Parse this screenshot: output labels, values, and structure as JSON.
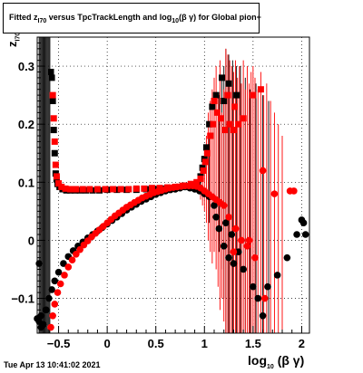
{
  "title": {
    "prefix": "Fitted  z",
    "z_sub": "I70",
    "middle": " versus TpcTrackLength and log",
    "log_sub": "10",
    "suffix": "(β γ) for Global pion+"
  },
  "y_axis_label": {
    "main": "z",
    "sub": "I70"
  },
  "x_axis_label": {
    "main": "log",
    "sub": "10",
    "suffix": "(β γ)"
  },
  "timestamp": "Tue Apr 13 10:41:02 2021",
  "colors": {
    "series_black": "#000000",
    "series_red": "#ff0000",
    "grid": "#000000",
    "background": "#ffffff"
  },
  "chart_data": {
    "type": "scatter",
    "xlim": [
      -0.72,
      2.08
    ],
    "ylim": [
      -0.16,
      0.35
    ],
    "x_ticks": [
      -0.5,
      0,
      0.5,
      1,
      1.5,
      2
    ],
    "x_tick_labels": [
      "−0.5",
      "0",
      "0.5",
      "1",
      "1.5",
      "2"
    ],
    "y_ticks": [
      -0.1,
      0,
      0.1,
      0.2,
      0.3
    ],
    "y_tick_labels": [
      "−0.1",
      "0",
      "0.1",
      "0.2",
      "0.3"
    ],
    "grid": true,
    "series": [
      {
        "color": "#000000",
        "marker": "square",
        "points": [
          [
            -0.58,
            0.29
          ],
          [
            -0.57,
            0.28
          ],
          [
            -0.56,
            0.24
          ],
          [
            -0.55,
            0.19
          ],
          [
            -0.54,
            0.15
          ],
          [
            -0.53,
            0.115
          ],
          [
            -0.52,
            0.105
          ],
          [
            -0.51,
            0.097
          ],
          [
            -0.49,
            0.092
          ],
          [
            -0.46,
            0.088
          ],
          [
            -0.42,
            0.086
          ],
          [
            -0.38,
            0.086
          ],
          [
            -0.33,
            0.086
          ],
          [
            -0.28,
            0.086
          ],
          [
            -0.22,
            0.086
          ],
          [
            -0.15,
            0.086
          ],
          [
            -0.08,
            0.086
          ],
          [
            0.0,
            0.087
          ],
          [
            0.1,
            0.087
          ],
          [
            0.2,
            0.087
          ],
          [
            0.3,
            0.087
          ],
          [
            0.4,
            0.088
          ],
          [
            0.5,
            0.088
          ],
          [
            0.6,
            0.089
          ],
          [
            0.7,
            0.09
          ],
          [
            0.8,
            0.092
          ],
          [
            0.88,
            0.094
          ],
          [
            0.93,
            0.098
          ],
          [
            0.96,
            0.11
          ],
          [
            0.98,
            0.125
          ],
          [
            1.0,
            0.14
          ],
          [
            1.02,
            0.16
          ],
          [
            1.05,
            0.2
          ],
          [
            1.08,
            0.23
          ],
          [
            1.12,
            0.25
          ],
          [
            1.18,
            0.28
          ],
          [
            1.25,
            0.27
          ],
          [
            1.33,
            0.25
          ],
          [
            1.2,
            0.24
          ]
        ]
      },
      {
        "color": "#000000",
        "marker": "circle",
        "points": [
          [
            -0.72,
            -0.135
          ],
          [
            -0.7,
            -0.14
          ],
          [
            -0.68,
            -0.15
          ],
          [
            -0.66,
            -0.145
          ],
          [
            -0.63,
            -0.12
          ],
          [
            -0.6,
            -0.1
          ],
          [
            -0.57,
            -0.085
          ],
          [
            -0.54,
            -0.07
          ],
          [
            -0.5,
            -0.055
          ],
          [
            -0.45,
            -0.04
          ],
          [
            -0.4,
            -0.028
          ],
          [
            -0.35,
            -0.018
          ],
          [
            -0.3,
            -0.01
          ],
          [
            -0.25,
            -0.003
          ],
          [
            -0.2,
            0.004
          ],
          [
            -0.15,
            0.01
          ],
          [
            -0.1,
            0.016
          ],
          [
            -0.05,
            0.022
          ],
          [
            0.0,
            0.028
          ],
          [
            0.05,
            0.034
          ],
          [
            0.1,
            0.04
          ],
          [
            0.15,
            0.046
          ],
          [
            0.2,
            0.052
          ],
          [
            0.25,
            0.057
          ],
          [
            0.3,
            0.062
          ],
          [
            0.35,
            0.067
          ],
          [
            0.4,
            0.071
          ],
          [
            0.45,
            0.075
          ],
          [
            0.5,
            0.079
          ],
          [
            0.55,
            0.082
          ],
          [
            0.6,
            0.085
          ],
          [
            0.65,
            0.087
          ],
          [
            0.7,
            0.088
          ],
          [
            0.75,
            0.09
          ],
          [
            0.8,
            0.092
          ],
          [
            0.85,
            0.09
          ],
          [
            0.9,
            0.088
          ],
          [
            0.95,
            0.085
          ],
          [
            1.0,
            0.08
          ],
          [
            1.05,
            0.075
          ],
          [
            1.1,
            0.06
          ],
          [
            1.12,
            0.04
          ],
          [
            1.15,
            0.02
          ],
          [
            1.2,
            -0.01
          ],
          [
            1.25,
            -0.03
          ],
          [
            1.3,
            -0.04
          ],
          [
            1.22,
            0.03
          ],
          [
            1.28,
            0.01
          ],
          [
            1.35,
            -0.02
          ],
          [
            1.4,
            -0.05
          ],
          [
            1.5,
            -0.08
          ],
          [
            1.55,
            -0.1
          ],
          [
            1.6,
            -0.13
          ],
          [
            1.65,
            -0.08
          ],
          [
            1.75,
            -0.06
          ],
          [
            1.85,
            -0.03
          ],
          [
            1.95,
            0.01
          ],
          [
            2.0,
            0.035
          ],
          [
            2.02,
            0.03
          ],
          [
            2.04,
            0.01
          ],
          [
            -0.7,
            -0.04
          ],
          [
            -0.68,
            -0.13
          ]
        ]
      },
      {
        "color": "#ff0000",
        "marker": "square",
        "points": [
          [
            -0.56,
            0.25
          ],
          [
            -0.55,
            0.21
          ],
          [
            -0.54,
            0.17
          ],
          [
            -0.53,
            0.13
          ],
          [
            -0.52,
            0.11
          ],
          [
            -0.5,
            0.098
          ],
          [
            -0.47,
            0.092
          ],
          [
            -0.43,
            0.089
          ],
          [
            -0.38,
            0.088
          ],
          [
            -0.32,
            0.088
          ],
          [
            -0.25,
            0.088
          ],
          [
            -0.18,
            0.088
          ],
          [
            -0.1,
            0.088
          ],
          [
            -0.02,
            0.088
          ],
          [
            0.06,
            0.088
          ],
          [
            0.14,
            0.088
          ],
          [
            0.22,
            0.088
          ],
          [
            0.3,
            0.089
          ],
          [
            0.38,
            0.089
          ],
          [
            0.46,
            0.09
          ],
          [
            0.54,
            0.09
          ],
          [
            0.62,
            0.091
          ],
          [
            0.7,
            0.092
          ],
          [
            0.78,
            0.094
          ],
          [
            0.86,
            0.097
          ],
          [
            0.92,
            0.1
          ],
          [
            0.96,
            0.106
          ],
          [
            0.99,
            0.12
          ],
          [
            1.01,
            0.135
          ],
          [
            1.03,
            0.15
          ],
          [
            1.06,
            0.18
          ],
          [
            1.09,
            0.2
          ],
          [
            1.13,
            0.22
          ],
          [
            1.17,
            0.21
          ],
          [
            1.21,
            0.19
          ],
          [
            1.26,
            0.2
          ],
          [
            1.3,
            0.19
          ],
          [
            1.35,
            0.2
          ],
          [
            1.4,
            0.21
          ],
          [
            1.24,
            0.25
          ],
          [
            1.31,
            0.23
          ],
          [
            1.1,
            0.24
          ],
          [
            1.5,
            0.25
          ],
          [
            1.58,
            0.26
          ]
        ]
      },
      {
        "color": "#ff0000",
        "marker": "circle",
        "points": [
          [
            -0.58,
            -0.15
          ],
          [
            -0.56,
            -0.13
          ],
          [
            -0.54,
            -0.11
          ],
          [
            -0.51,
            -0.09
          ],
          [
            -0.48,
            -0.075
          ],
          [
            -0.44,
            -0.06
          ],
          [
            -0.4,
            -0.046
          ],
          [
            -0.36,
            -0.034
          ],
          [
            -0.32,
            -0.024
          ],
          [
            -0.28,
            -0.016
          ],
          [
            -0.24,
            -0.008
          ],
          [
            -0.2,
            -0.001
          ],
          [
            -0.16,
            0.006
          ],
          [
            -0.12,
            0.012
          ],
          [
            -0.08,
            0.018
          ],
          [
            -0.04,
            0.024
          ],
          [
            0.0,
            0.03
          ],
          [
            0.04,
            0.036
          ],
          [
            0.08,
            0.042
          ],
          [
            0.12,
            0.047
          ],
          [
            0.16,
            0.052
          ],
          [
            0.2,
            0.057
          ],
          [
            0.24,
            0.061
          ],
          [
            0.28,
            0.065
          ],
          [
            0.32,
            0.069
          ],
          [
            0.36,
            0.073
          ],
          [
            0.4,
            0.076
          ],
          [
            0.44,
            0.079
          ],
          [
            0.48,
            0.082
          ],
          [
            0.52,
            0.084
          ],
          [
            0.56,
            0.086
          ],
          [
            0.6,
            0.088
          ],
          [
            0.64,
            0.09
          ],
          [
            0.68,
            0.091
          ],
          [
            0.72,
            0.092
          ],
          [
            0.76,
            0.093
          ],
          [
            0.8,
            0.094
          ],
          [
            0.84,
            0.094
          ],
          [
            0.88,
            0.094
          ],
          [
            0.92,
            0.093
          ],
          [
            0.96,
            0.09
          ],
          [
            1.0,
            0.085
          ],
          [
            1.04,
            0.08
          ],
          [
            1.08,
            0.075
          ],
          [
            1.12,
            0.07
          ],
          [
            1.16,
            0.065
          ],
          [
            1.2,
            0.06
          ],
          [
            1.25,
            0.04
          ],
          [
            1.32,
            0.02
          ],
          [
            1.38,
            0.0
          ],
          [
            1.44,
            -0.01
          ],
          [
            1.52,
            -0.03
          ],
          [
            1.6,
            0.12
          ],
          [
            1.72,
            0.08
          ],
          [
            1.88,
            0.085
          ],
          [
            1.92,
            0.085
          ],
          [
            1.62,
            -0.1
          ],
          [
            1.3,
            -0.02
          ],
          [
            1.46,
            0.0
          ]
        ]
      }
    ],
    "error_bars_red": [
      [
        1.22,
        -0.16,
        0.33
      ],
      [
        1.24,
        -0.16,
        0.32
      ],
      [
        1.26,
        -0.16,
        0.31
      ],
      [
        1.28,
        -0.16,
        0.3
      ],
      [
        1.3,
        -0.16,
        0.29
      ],
      [
        1.32,
        -0.16,
        0.31
      ],
      [
        1.34,
        -0.16,
        0.28
      ],
      [
        1.36,
        -0.16,
        0.3
      ],
      [
        1.38,
        -0.16,
        0.27
      ],
      [
        1.4,
        -0.16,
        0.31
      ],
      [
        1.42,
        -0.16,
        0.26
      ],
      [
        1.44,
        -0.16,
        0.3
      ],
      [
        1.46,
        -0.16,
        0.27
      ],
      [
        1.48,
        -0.16,
        0.29
      ],
      [
        1.5,
        -0.16,
        0.3
      ],
      [
        1.52,
        -0.16,
        0.28
      ],
      [
        1.55,
        -0.16,
        0.26
      ],
      [
        1.58,
        -0.16,
        0.29
      ],
      [
        1.61,
        -0.16,
        0.25
      ],
      [
        1.64,
        -0.16,
        0.27
      ],
      [
        1.68,
        -0.16,
        0.24
      ],
      [
        1.72,
        -0.16,
        0.22
      ],
      [
        1.76,
        -0.16,
        0.2
      ],
      [
        1.8,
        -0.16,
        0.18
      ],
      [
        1.1,
        -0.02,
        0.28
      ],
      [
        1.12,
        -0.05,
        0.3
      ],
      [
        1.14,
        -0.08,
        0.25
      ],
      [
        1.16,
        -0.12,
        0.31
      ],
      [
        1.18,
        -0.1,
        0.22
      ],
      [
        1.2,
        -0.14,
        0.26
      ],
      [
        0.96,
        0.07,
        0.12
      ],
      [
        0.98,
        0.06,
        0.14
      ],
      [
        1.0,
        0.05,
        0.16
      ],
      [
        1.02,
        0.03,
        0.18
      ],
      [
        1.04,
        0.0,
        0.22
      ],
      [
        1.06,
        -0.02,
        0.24
      ],
      [
        1.08,
        -0.04,
        0.26
      ]
    ],
    "error_bars_black": [
      [
        -0.72,
        -0.16,
        0.35
      ],
      [
        -0.7,
        -0.16,
        0.35
      ],
      [
        -0.69,
        -0.16,
        0.35
      ],
      [
        -0.68,
        -0.16,
        0.35
      ],
      [
        -0.67,
        -0.16,
        0.35
      ],
      [
        -0.66,
        -0.16,
        0.35
      ],
      [
        -0.65,
        -0.16,
        0.35
      ],
      [
        -0.64,
        -0.16,
        0.35
      ],
      [
        -0.63,
        -0.16,
        0.35
      ],
      [
        -0.62,
        -0.16,
        0.35
      ],
      [
        -0.61,
        -0.16,
        0.35
      ],
      [
        -0.6,
        -0.16,
        0.35
      ],
      [
        -0.59,
        -0.16,
        0.35
      ],
      [
        1.22,
        -0.16,
        0.33
      ],
      [
        1.25,
        -0.16,
        0.32
      ],
      [
        1.29,
        -0.16,
        0.31
      ],
      [
        1.33,
        -0.16,
        0.3
      ],
      [
        1.37,
        -0.16,
        0.3
      ],
      [
        1.42,
        -0.16,
        0.28
      ],
      [
        1.47,
        -0.16,
        0.26
      ],
      [
        1.53,
        -0.16,
        0.27
      ],
      [
        1.6,
        -0.16,
        0.25
      ],
      [
        1.66,
        -0.16,
        0.24
      ],
      [
        1.2,
        -0.1,
        0.3
      ],
      [
        1.18,
        -0.05,
        0.28
      ],
      [
        1.15,
        -0.02,
        0.25
      ],
      [
        1.1,
        0.0,
        0.2
      ],
      [
        1.05,
        0.03,
        0.18
      ]
    ]
  }
}
